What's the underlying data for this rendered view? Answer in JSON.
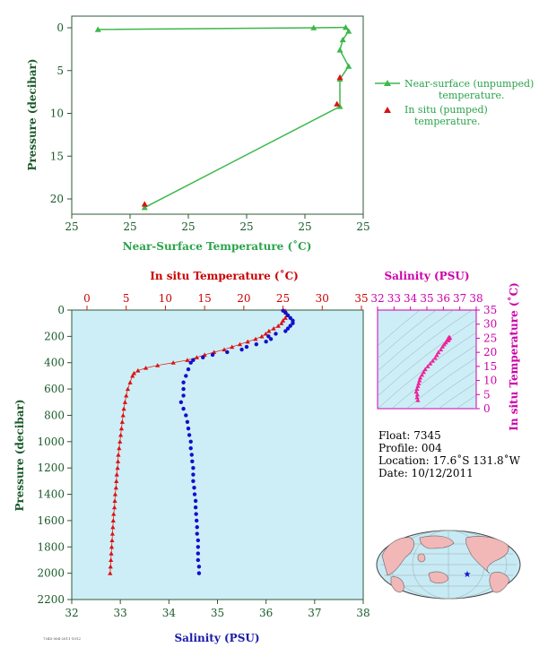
{
  "colors": {
    "near_surface": "#3cb84a",
    "in_situ": "#dd1111",
    "salinity": "#1010cc",
    "ts_point": "#ee2299",
    "plot_bg": "#cdeef7",
    "axis": "#2c5a35"
  },
  "chart_data": [
    {
      "type": "line",
      "xlabel": "Near-Surface Temperature (˚C)",
      "ylabel": "Pressure (decibar)",
      "x_ticks": [
        "25",
        "25",
        "25",
        "25",
        "25",
        "25"
      ],
      "y_ticks": [
        0,
        5,
        10,
        15,
        20
      ],
      "y_range": [
        0,
        22.5
      ],
      "y_inverted": true,
      "series": [
        {
          "name": "Near-surface (unpumped) temperature.",
          "marker": "triangle",
          "points": [
            [
              0.09,
              0.2
            ],
            [
              0.83,
              0.0
            ],
            [
              0.94,
              -0.05
            ],
            [
              0.95,
              0.4
            ],
            [
              0.93,
              1.4
            ],
            [
              0.92,
              2.6
            ],
            [
              0.95,
              4.5
            ],
            [
              0.92,
              6.0
            ],
            [
              0.92,
              9.2
            ],
            [
              0.25,
              21.0
            ]
          ]
        },
        {
          "name": "In situ (pumped) temperature.",
          "marker": "triangle",
          "points": [
            [
              0.92,
              5.8
            ],
            [
              0.91,
              8.9
            ],
            [
              0.25,
              20.6
            ]
          ]
        }
      ],
      "legend": [
        "Near-surface (unpumped)",
        "temperature.",
        "In situ (pumped)",
        "temperature."
      ]
    },
    {
      "type": "scatter",
      "x_top_label": "In situ Temperature (˚C)",
      "x_bottom_label": "Salinity (PSU)",
      "ylabel": "Pressure (decibar)",
      "temp_ticks": [
        0,
        5,
        10,
        15,
        20,
        25,
        30,
        35
      ],
      "sal_ticks": [
        32,
        33,
        34,
        35,
        36,
        37,
        38
      ],
      "pressure_ticks": [
        0,
        200,
        400,
        600,
        800,
        1000,
        1200,
        1400,
        1600,
        1800,
        2000,
        2200
      ],
      "temp_range": [
        0,
        35
      ],
      "sal_range": [
        32,
        38
      ],
      "pressure_range": [
        0,
        2200
      ],
      "temperature_profile": {
        "pressure": [
          5,
          20,
          40,
          60,
          80,
          100,
          120,
          140,
          160,
          180,
          200,
          220,
          240,
          260,
          280,
          300,
          320,
          340,
          360,
          380,
          400,
          420,
          440,
          460,
          480,
          500,
          550,
          600,
          650,
          700,
          750,
          800,
          850,
          900,
          950,
          1000,
          1050,
          1100,
          1150,
          1200,
          1250,
          1300,
          1350,
          1400,
          1450,
          1500,
          1550,
          1600,
          1650,
          1700,
          1750,
          1800,
          1850,
          1900,
          1950,
          2000
        ],
        "temperature": [
          25.3,
          25.4,
          25.5,
          25.3,
          25.0,
          24.8,
          24.4,
          23.8,
          23.2,
          22.8,
          22.3,
          21.5,
          20.5,
          19.5,
          18.5,
          17.5,
          16.2,
          15.0,
          14.0,
          12.8,
          11.0,
          9.0,
          7.5,
          6.5,
          6.0,
          5.8,
          5.5,
          5.2,
          5.0,
          4.85,
          4.7,
          4.6,
          4.5,
          4.4,
          4.3,
          4.2,
          4.1,
          4.0,
          3.95,
          3.9,
          3.8,
          3.75,
          3.7,
          3.6,
          3.55,
          3.5,
          3.4,
          3.35,
          3.3,
          3.25,
          3.2,
          3.15,
          3.1,
          3.05,
          3.0,
          2.95
        ]
      },
      "salinity_profile": {
        "pressure": [
          5,
          20,
          40,
          60,
          80,
          100,
          120,
          140,
          160,
          180,
          200,
          220,
          240,
          260,
          280,
          300,
          320,
          340,
          360,
          380,
          400,
          450,
          500,
          550,
          600,
          650,
          700,
          750,
          800,
          850,
          900,
          950,
          1000,
          1050,
          1100,
          1150,
          1200,
          1250,
          1300,
          1350,
          1400,
          1450,
          1500,
          1550,
          1600,
          1650,
          1700,
          1750,
          1800,
          1850,
          1900,
          1950,
          2000
        ],
        "salinity": [
          36.35,
          36.4,
          36.45,
          36.5,
          36.55,
          36.55,
          36.5,
          36.45,
          36.4,
          36.2,
          36.05,
          36.1,
          36.0,
          35.8,
          35.6,
          35.5,
          35.2,
          34.9,
          34.7,
          34.5,
          34.45,
          34.4,
          34.35,
          34.3,
          34.3,
          34.3,
          34.25,
          34.3,
          34.35,
          34.38,
          34.4,
          34.42,
          34.45,
          34.45,
          34.47,
          34.48,
          34.5,
          34.5,
          34.5,
          34.52,
          34.53,
          34.55,
          34.55,
          34.56,
          34.57,
          34.58,
          34.58,
          34.6,
          34.6,
          34.6,
          34.6,
          34.62,
          34.62
        ]
      }
    },
    {
      "type": "scatter",
      "title": "Salinity (PSU)",
      "ylabel": "In situ Temperature (˚C)",
      "sal_ticks": [
        32,
        33,
        34,
        35,
        36,
        37,
        38
      ],
      "temp_ticks": [
        0,
        5,
        10,
        15,
        20,
        25,
        30,
        35
      ],
      "sal_range": [
        32,
        38
      ],
      "temp_range": [
        0,
        35
      ],
      "points": [
        [
          34.45,
          3
        ],
        [
          34.4,
          4
        ],
        [
          34.42,
          5
        ],
        [
          34.35,
          6
        ],
        [
          34.4,
          7
        ],
        [
          34.45,
          8
        ],
        [
          34.5,
          9
        ],
        [
          34.55,
          10
        ],
        [
          34.6,
          11
        ],
        [
          34.7,
          12
        ],
        [
          34.8,
          13
        ],
        [
          34.9,
          14
        ],
        [
          35.05,
          15
        ],
        [
          35.2,
          16
        ],
        [
          35.35,
          17
        ],
        [
          35.5,
          18
        ],
        [
          35.6,
          19
        ],
        [
          35.7,
          20
        ],
        [
          35.85,
          21
        ],
        [
          35.95,
          22
        ],
        [
          36.05,
          22.8
        ],
        [
          36.15,
          23.5
        ],
        [
          36.3,
          24.2
        ],
        [
          36.35,
          24.8
        ],
        [
          36.4,
          25.2
        ],
        [
          36.35,
          25.4
        ],
        [
          36.3,
          25.0
        ],
        [
          36.25,
          24.5
        ]
      ]
    }
  ],
  "float_info": {
    "float": "Float:  7345",
    "profile": "Profile:  004",
    "location": "Location:  17.6˚S  131.8˚W",
    "date": "Date:  10/12/2011"
  },
  "footer_code": "7345·004·2011·1012"
}
